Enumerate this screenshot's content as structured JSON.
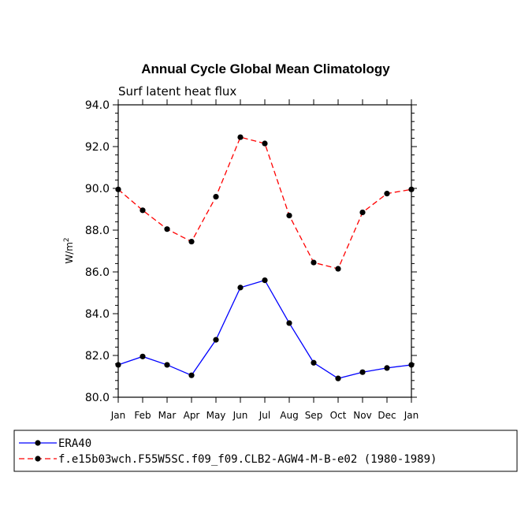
{
  "chart_data": {
    "type": "line",
    "title": "Annual Cycle Global Mean Climatology",
    "subtitle": "Surf latent heat flux",
    "ylabel": "W/m",
    "ylabel_sup": "2",
    "ylim": [
      80.0,
      94.0
    ],
    "yticks": [
      "80.0",
      "82.0",
      "84.0",
      "86.0",
      "88.0",
      "90.0",
      "92.0",
      "94.0"
    ],
    "categories": [
      "Jan",
      "Feb",
      "Mar",
      "Apr",
      "May",
      "Jun",
      "Jul",
      "Aug",
      "Sep",
      "Oct",
      "Nov",
      "Dec",
      "Jan"
    ],
    "grid": false,
    "legend_position": "bottom",
    "series": [
      {
        "name": "ERA40",
        "color": "#0000ff",
        "dash": "solid",
        "values": [
          81.55,
          81.95,
          81.55,
          81.05,
          82.75,
          85.25,
          85.6,
          83.55,
          81.65,
          80.9,
          81.2,
          81.4,
          81.55
        ]
      },
      {
        "name": "f.e15b03wch.F55W5SC.f09_f09.CLB2-AGW4-M-B-e02 (1980-1989)",
        "color": "#ff0000",
        "dash": "dashed",
        "values": [
          89.95,
          88.95,
          88.05,
          87.45,
          89.6,
          92.45,
          92.15,
          88.7,
          86.45,
          86.15,
          88.85,
          89.75,
          89.95
        ]
      }
    ]
  }
}
